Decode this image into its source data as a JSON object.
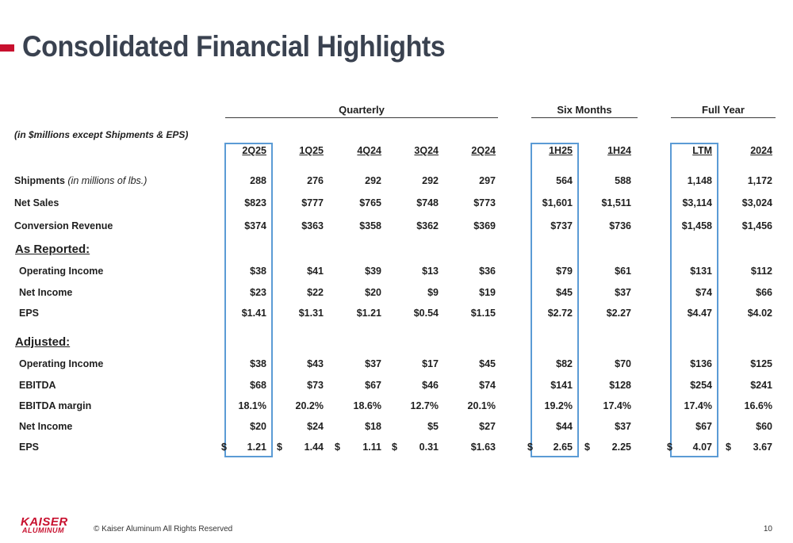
{
  "title": "Consolidated Financial Highlights",
  "units_note": "(in $millions except Shipments & EPS)",
  "groups": {
    "quarterly": "Quarterly",
    "six_months": "Six Months",
    "full_year": "Full Year"
  },
  "columns": [
    "2Q25",
    "1Q25",
    "4Q24",
    "3Q24",
    "2Q24",
    "1H25",
    "1H24",
    "LTM",
    "2024"
  ],
  "sections": {
    "as_reported": "As Reported:",
    "adjusted": "Adjusted:"
  },
  "rows": {
    "shipments": {
      "label": "Shipments",
      "note": "(in millions of lbs.)",
      "values": [
        "288",
        "276",
        "292",
        "292",
        "297",
        "564",
        "588",
        "1,148",
        "1,172"
      ]
    },
    "net_sales": {
      "label": "Net Sales",
      "values": [
        "$823",
        "$777",
        "$765",
        "$748",
        "$773",
        "$1,601",
        "$1,511",
        "$3,114",
        "$3,024"
      ]
    },
    "conversion_revenue": {
      "label": "Conversion Revenue",
      "values": [
        "$374",
        "$363",
        "$358",
        "$362",
        "$369",
        "$737",
        "$736",
        "$1,458",
        "$1,456"
      ]
    },
    "rep_operating_income": {
      "label": "Operating Income",
      "values": [
        "$38",
        "$41",
        "$39",
        "$13",
        "$36",
        "$79",
        "$61",
        "$131",
        "$112"
      ]
    },
    "rep_net_income": {
      "label": "Net Income",
      "values": [
        "$23",
        "$22",
        "$20",
        "$9",
        "$19",
        "$45",
        "$37",
        "$74",
        "$66"
      ]
    },
    "rep_eps": {
      "label": "EPS",
      "values": [
        "$1.41",
        "$1.31",
        "$1.21",
        "$0.54",
        "$1.15",
        "$2.72",
        "$2.27",
        "$4.47",
        "$4.02"
      ]
    },
    "adj_operating_income": {
      "label": "Operating Income",
      "values": [
        "$38",
        "$43",
        "$37",
        "$17",
        "$45",
        "$82",
        "$70",
        "$136",
        "$125"
      ]
    },
    "adj_ebitda": {
      "label": "EBITDA",
      "values": [
        "$68",
        "$73",
        "$67",
        "$46",
        "$74",
        "$141",
        "$128",
        "$254",
        "$241"
      ]
    },
    "adj_ebitda_margin": {
      "label": "EBITDA margin",
      "values": [
        "18.1%",
        "20.2%",
        "18.6%",
        "12.7%",
        "20.1%",
        "19.2%",
        "17.4%",
        "17.4%",
        "16.6%"
      ]
    },
    "adj_net_income": {
      "label": "Net Income",
      "values": [
        "$20",
        "$24",
        "$18",
        "$5",
        "$27",
        "$44",
        "$37",
        "$67",
        "$60"
      ]
    },
    "adj_eps": {
      "label": "EPS",
      "values": [
        "$ 1.21",
        "$ 1.44",
        "$ 1.11",
        "$ 0.31",
        "$1.63",
        "$ 2.65",
        "$ 2.25",
        "$ 4.07",
        "$ 3.67"
      ]
    }
  },
  "footer": {
    "logo_top": "KAISER",
    "logo_bottom": "ALUMINUM",
    "copyright": "© Kaiser Aluminum All Rights Reserved",
    "page_number": "10"
  },
  "colors": {
    "accent": "#c8102e",
    "title": "#3a4250",
    "highlight_box": "#5b9bd5"
  }
}
